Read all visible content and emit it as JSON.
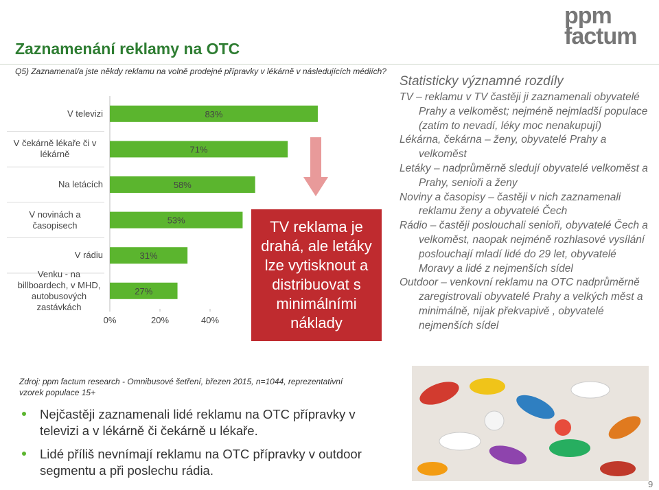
{
  "logo": {
    "line1": "ppm",
    "line2": "factum"
  },
  "title": "Zaznamenání reklamy na OTC",
  "question": "Q5) Zaznamenal/a jste někdy reklamu na volně prodejné přípravky  v lékárně v následujících médiích?",
  "chart_data": {
    "type": "bar",
    "orientation": "horizontal",
    "categories": [
      "V televizi",
      "V čekárně lékaře či v lékárně",
      "Na letácích",
      "V novinách a časopisech",
      "V rádiu",
      "Venku - na billboardech, v MHD, autobusových zastávkách"
    ],
    "values": [
      83,
      71,
      58,
      53,
      31,
      27
    ],
    "value_labels": [
      "83%",
      "71%",
      "58%",
      "53%",
      "31%",
      "27%"
    ],
    "color": "#5bb52e",
    "xlim": [
      0,
      100
    ],
    "xticks": [
      {
        "value": 0,
        "label": "0%"
      },
      {
        "value": 20,
        "label": "20%"
      },
      {
        "value": 40,
        "label": "40%"
      }
    ]
  },
  "callout": "TV reklama je drahá, ale letáky lze vytisknout a distribuovat s minimálními náklady",
  "differences": {
    "title": "Statisticky významné rozdíly",
    "items": [
      "TV – reklamu v TV častěji ji zaznamenali obyvatelé Prahy a velkoměst; nejméně nejmladší populace (zatím to nevadí, léky moc nenakupují)",
      "Lékárna, čekárna – ženy, obyvatelé Prahy a velkoměst",
      "Letáky – nadprůměrně sledují obyvatelé velkoměst a Prahy, senioři a ženy",
      "Noviny a časopisy – častěji v nich zaznamenali reklamu ženy a obyvatelé Čech",
      "Rádio – častěji poslouchali senioři, obyvatelé Čech a velkoměst, naopak nejméně rozhlasové vysílání poslouchají mladí lidé do 29 let, obyvatelé Moravy a lidé z nejmenších sídel",
      "Outdoor – venkovní reklamu na OTC nadprůměrně zaregistrovali obyvatelé Prahy a velkých měst a minimálně, nijak překvapivě , obyvatelé nejmenších sídel"
    ]
  },
  "source": "Zdroj: ppm factum research -  Omnibusové šetření, březen 2015, n=1044, reprezentativní vzorek populace 15+",
  "bullets": [
    "Nejčastěji zaznamenali lidé reklamu na OTC přípravky v televizi a v lékárně či čekárně u lékaře.",
    "Lidé příliš nevnímají reklamu na OTC přípravky v outdoor segmentu a při poslechu rádia."
  ],
  "page_number": "9"
}
